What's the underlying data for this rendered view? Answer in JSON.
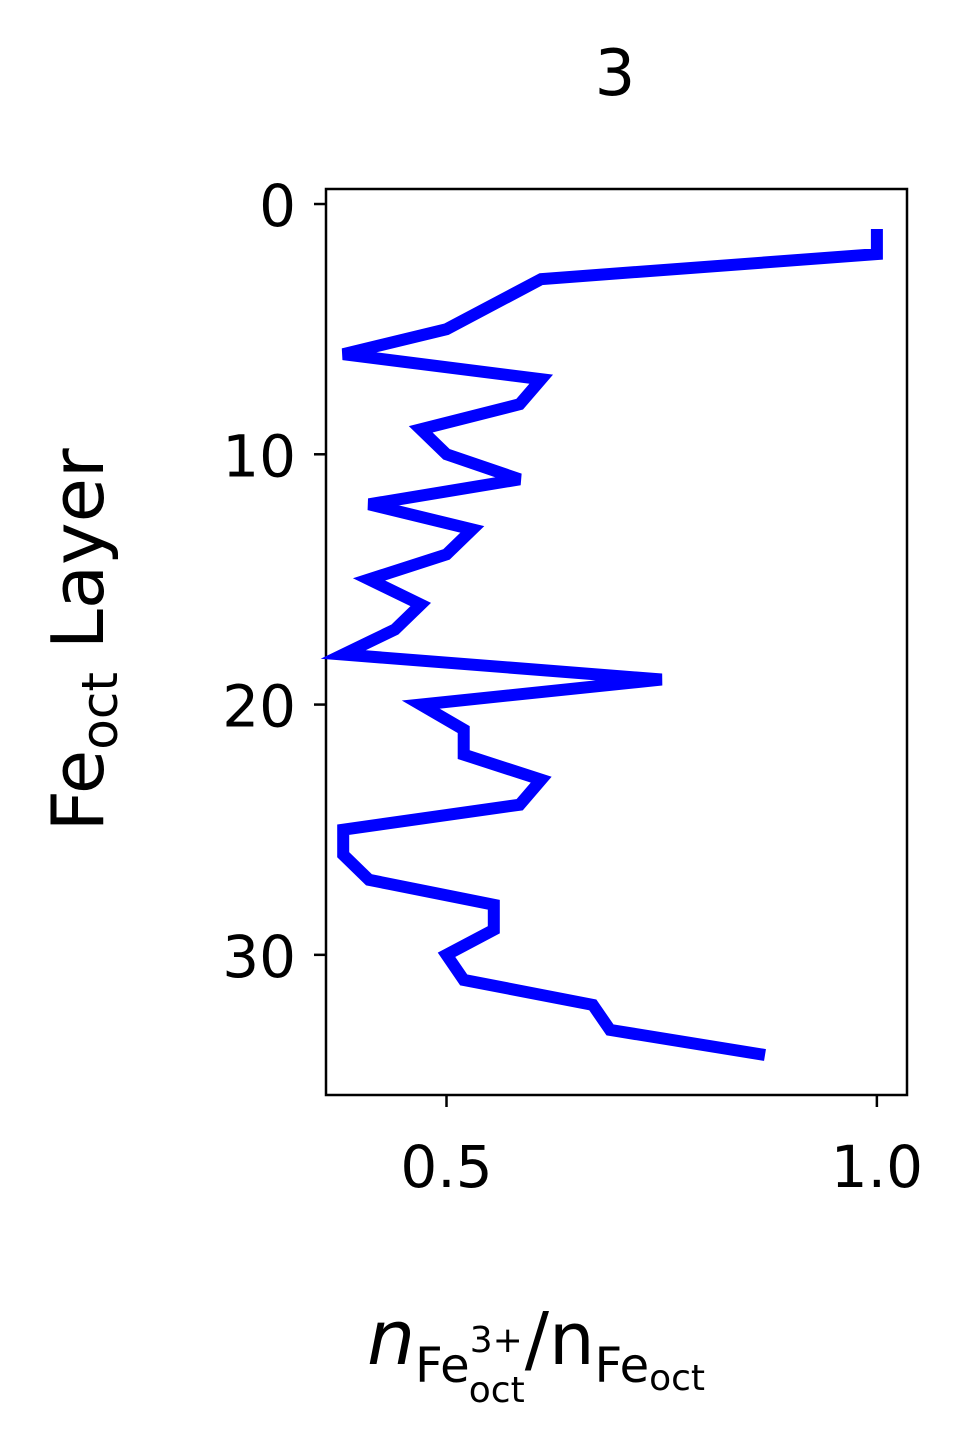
{
  "chart_data": {
    "type": "line",
    "title": "3",
    "ylabel": {
      "base": "Fe",
      "sub": "oct",
      "rest": " Layer"
    },
    "xlabel": {
      "n_italic": "n",
      "num_base": "Fe",
      "num_sup": "3+",
      "num_sub": "oct",
      "slash": "/n",
      "den_base": "Fe",
      "den_sub": "oct"
    },
    "xlim": [
      0.36,
      1.035
    ],
    "ylim": [
      35.6,
      -0.6
    ],
    "yinverted": true,
    "xticks": [
      0.5,
      1.0
    ],
    "xtick_labels": [
      "0.5",
      "1.0"
    ],
    "yticks": [
      0,
      10,
      20,
      30
    ],
    "ytick_labels": [
      "0",
      "10",
      "20",
      "30"
    ],
    "grid": false,
    "series": [
      {
        "color": "#0000ff",
        "x": [
          1.0,
          1.0,
          0.61,
          0.5,
          0.38,
          0.61,
          0.585,
          0.47,
          0.5,
          0.585,
          0.41,
          0.53,
          0.5,
          0.41,
          0.47,
          0.44,
          0.38,
          0.75,
          0.47,
          0.52,
          0.52,
          0.61,
          0.585,
          0.38,
          0.38,
          0.41,
          0.555,
          0.555,
          0.5,
          0.52,
          0.67,
          0.69,
          0.87
        ],
        "y": [
          1,
          2,
          3,
          5,
          6,
          7,
          8,
          9,
          10,
          11,
          12,
          13,
          14,
          15,
          16,
          17,
          18,
          19,
          20,
          21,
          22,
          23,
          24,
          25,
          26,
          27,
          28,
          29,
          30,
          31,
          32,
          33,
          34
        ]
      }
    ]
  }
}
